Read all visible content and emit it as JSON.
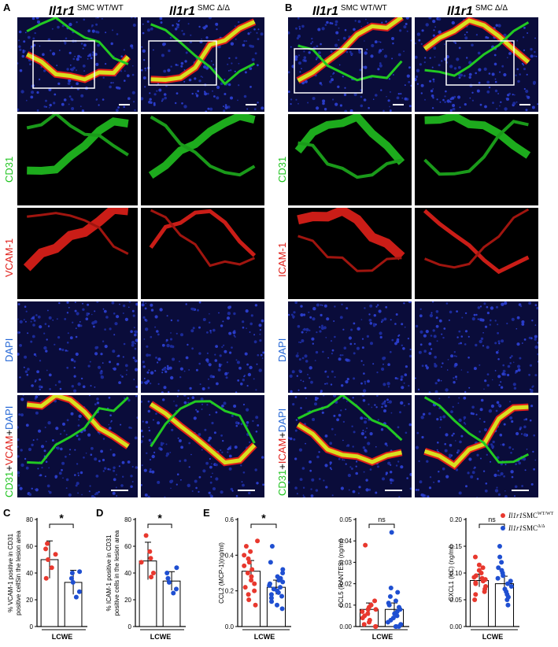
{
  "panel_labels": {
    "A": "A",
    "B": "B",
    "C": "C",
    "D": "D",
    "E": "E"
  },
  "gene": "Il1r1",
  "group_wt": "SMC WT/WT",
  "group_ko": "SMC Δ/Δ",
  "rows_A": {
    "cd31": "CD31",
    "vcam": "VCAM-1",
    "dapi": "DAPI",
    "merge_a": "CD31",
    "merge_plus1": "+",
    "merge_b": "VCAM",
    "merge_plus2": "+",
    "merge_c": "DAPI"
  },
  "rows_B": {
    "cd31": "CD31",
    "icam": "ICAM-1",
    "dapi": "DAPI",
    "merge_a": "CD31",
    "merge_plus1": "+",
    "merge_b": "ICAM",
    "merge_plus2": "+",
    "merge_c": "DAPI"
  },
  "colors": {
    "wt": "#e8382e",
    "ko": "#1f4fd1",
    "cd31": "#1fc41f",
    "red_stain": "#e0201a",
    "dapi": "#2466d6"
  },
  "chart_data": [
    {
      "id": "C",
      "type": "bar",
      "ylabel_line1": "% VCAM-1 positive in CD31",
      "ylabel_line2": "positive cellSin the lesion area",
      "xlabel": "LCWE",
      "yticks": [
        "0",
        "20",
        "40",
        "60",
        "80"
      ],
      "ylim": [
        0,
        80
      ],
      "significance": "*",
      "series": [
        {
          "mean": 50,
          "sd": 14,
          "points": [
            62,
            58,
            54,
            50,
            44,
            36
          ]
        },
        {
          "mean": 33,
          "sd": 9,
          "points": [
            41,
            40,
            36,
            33,
            26,
            22
          ]
        }
      ]
    },
    {
      "id": "D",
      "type": "bar",
      "ylabel_line1": "% ICAM-1 positive in CD31",
      "ylabel_line2": "positive cells in the lesion area",
      "xlabel": "LCWE",
      "yticks": [
        "0",
        "20",
        "40",
        "60",
        "80"
      ],
      "ylim": [
        0,
        80
      ],
      "significance": "*",
      "series": [
        {
          "mean": 49,
          "sd": 14,
          "points": [
            68,
            56,
            51,
            48,
            40,
            37
          ]
        },
        {
          "mean": 34,
          "sd": 7,
          "points": [
            44,
            40,
            36,
            33,
            28,
            25
          ]
        }
      ]
    },
    {
      "id": "E1",
      "type": "bar",
      "ylabel": "CCL2 (MCP-1)(ng/ml)",
      "xlabel": "LCWE",
      "yticks": [
        "0.0",
        "0.2",
        "0.4",
        "0.6"
      ],
      "ylim": [
        0,
        0.6
      ],
      "significance": "*",
      "series": [
        {
          "mean": 0.31,
          "sd": 0.06,
          "points": [
            0.12,
            0.15,
            0.18,
            0.2,
            0.22,
            0.24,
            0.26,
            0.28,
            0.3,
            0.32,
            0.34,
            0.36,
            0.38,
            0.4,
            0.42,
            0.45,
            0.48
          ]
        },
        {
          "mean": 0.22,
          "sd": 0.04,
          "points": [
            0.1,
            0.12,
            0.14,
            0.16,
            0.17,
            0.18,
            0.19,
            0.2,
            0.21,
            0.22,
            0.23,
            0.24,
            0.25,
            0.26,
            0.27,
            0.28,
            0.3,
            0.32,
            0.36,
            0.45
          ]
        }
      ]
    },
    {
      "id": "E2",
      "type": "bar",
      "ylabel": "CCL5 (RANTES) (ng/ml)",
      "xlabel": "LCWE",
      "yticks": [
        "0.00",
        "0.01",
        "0.02",
        "0.03",
        "0.04",
        "0.05"
      ],
      "ylim": [
        0,
        0.05
      ],
      "significance": "ns",
      "series": [
        {
          "mean": 0.008,
          "sd": 0.003,
          "points": [
            0.0,
            0.0,
            0.0,
            0.001,
            0.002,
            0.003,
            0.004,
            0.005,
            0.006,
            0.007,
            0.008,
            0.008,
            0.009,
            0.01,
            0.01,
            0.012,
            0.038
          ]
        },
        {
          "mean": 0.008,
          "sd": 0.003,
          "points": [
            0.0,
            0.0,
            0.0,
            0.001,
            0.002,
            0.003,
            0.004,
            0.005,
            0.006,
            0.007,
            0.008,
            0.009,
            0.01,
            0.011,
            0.012,
            0.014,
            0.016,
            0.018,
            0.044
          ]
        }
      ]
    },
    {
      "id": "E3",
      "type": "bar",
      "ylabel": "CXCL1 (KC) (ng/ml)",
      "xlabel": "LCWE",
      "yticks": [
        "0.00",
        "0.05",
        "0.10",
        "0.15",
        "0.20"
      ],
      "ylim": [
        0,
        0.2
      ],
      "significance": "ns",
      "series": [
        {
          "mean": 0.086,
          "sd": 0.012,
          "points": [
            0.05,
            0.06,
            0.065,
            0.07,
            0.075,
            0.08,
            0.082,
            0.085,
            0.088,
            0.09,
            0.092,
            0.095,
            0.1,
            0.105,
            0.11,
            0.115,
            0.13
          ]
        },
        {
          "mean": 0.08,
          "sd": 0.014,
          "points": [
            0.04,
            0.05,
            0.055,
            0.06,
            0.065,
            0.07,
            0.075,
            0.08,
            0.085,
            0.09,
            0.095,
            0.1,
            0.105,
            0.11,
            0.12,
            0.13,
            0.15
          ]
        }
      ]
    }
  ],
  "legend": {
    "wt_gene": "Il1r1",
    "wt_label": "SMC",
    "wt_sup": "WT/WT",
    "ko_gene": "Il1r1",
    "ko_label": "SMC",
    "ko_sup": "Δ/Δ"
  }
}
